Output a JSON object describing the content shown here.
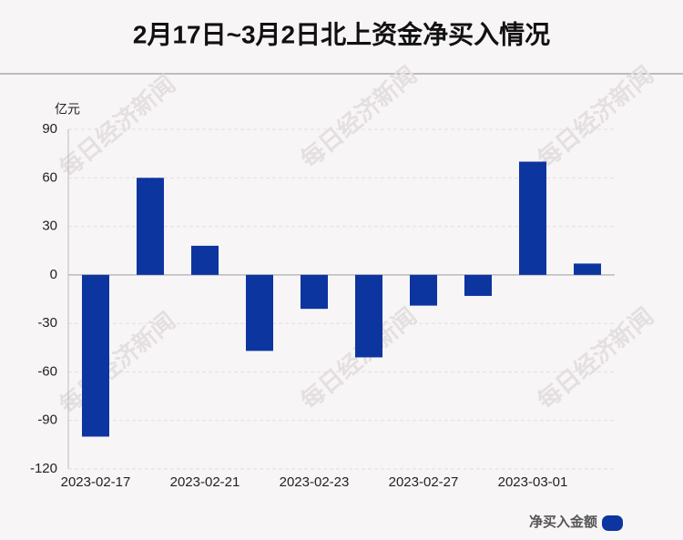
{
  "chart_data": {
    "type": "bar",
    "title": "2月17日~3月2日北上资金净买入情况",
    "y_label": "亿元",
    "categories": [
      "2023-02-17",
      null,
      "2023-02-21",
      null,
      "2023-02-23",
      null,
      "2023-02-27",
      null,
      "2023-03-01",
      null
    ],
    "series": [
      {
        "name": "净买入金额",
        "color": "#0d35a0",
        "values": [
          -100,
          60,
          18,
          -47,
          -21,
          -51,
          -19,
          -13,
          70,
          7
        ]
      }
    ],
    "ylim": [
      -120,
      90
    ],
    "yticks": [
      -120,
      -90,
      -60,
      -30,
      0,
      30,
      60,
      90
    ],
    "grid": true,
    "watermark": "每日经济新闻"
  }
}
